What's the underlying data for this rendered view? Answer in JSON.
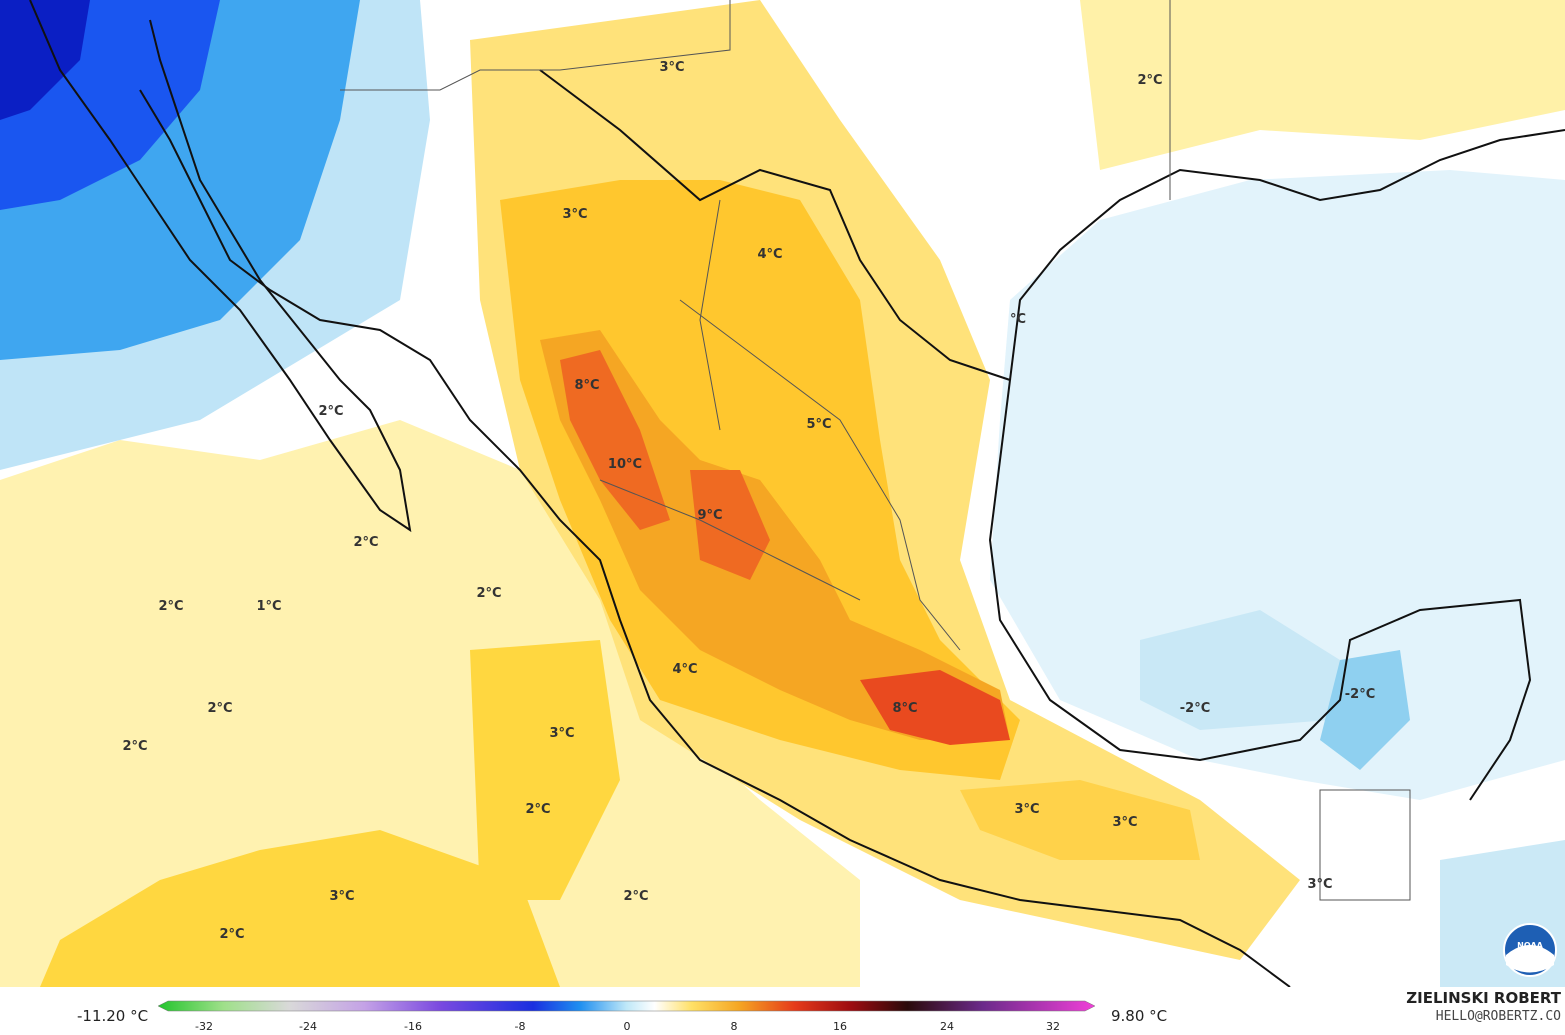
{
  "map": {
    "temperature_labels": [
      {
        "text": "3°C"
      },
      {
        "text": "2°C"
      },
      {
        "text": "3°C"
      },
      {
        "text": "4°C"
      },
      {
        "text": "°C"
      },
      {
        "text": "8°C"
      },
      {
        "text": "2°C"
      },
      {
        "text": "5°C"
      },
      {
        "text": "10°C"
      },
      {
        "text": "9°C"
      },
      {
        "text": "2°C"
      },
      {
        "text": "2°C"
      },
      {
        "text": "1°C"
      },
      {
        "text": "2°C"
      },
      {
        "text": "4°C"
      },
      {
        "text": "2°C"
      },
      {
        "text": "-2°C"
      },
      {
        "text": "-2°C"
      },
      {
        "text": "2°C"
      },
      {
        "text": "3°C"
      },
      {
        "text": "8°C"
      },
      {
        "text": "2°C"
      },
      {
        "text": "3°C"
      },
      {
        "text": "3°C"
      },
      {
        "text": "3°C"
      },
      {
        "text": "3°C"
      },
      {
        "text": "2°C"
      },
      {
        "text": "2°C"
      }
    ],
    "logo": "NOAA",
    "colors": {
      "ocean_cold": "#cdeaf5",
      "warm": "#ffe066",
      "hot": "#f5a623",
      "very_hot": "#e94a1f",
      "cold": "#1a56f0",
      "very_cold": "#0b1fc4",
      "neutral": "#ffffff"
    }
  },
  "legend": {
    "min_label": "-11.20 °C",
    "max_label": "9.80 °C",
    "ticks": [
      "-32",
      "-24",
      "-16",
      "-8",
      "0",
      "8",
      "16",
      "24",
      "32"
    ],
    "tick_values": [
      -32,
      -24,
      -16,
      -8,
      0,
      8,
      16,
      24,
      32
    ]
  },
  "credit": {
    "author": "ZIELINSKI ROBERT",
    "email": "HELLO@ROBERTZ.CO"
  }
}
